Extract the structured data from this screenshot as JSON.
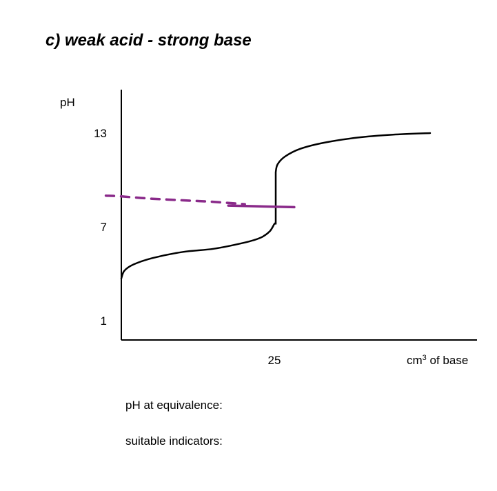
{
  "chart_data": {
    "type": "line",
    "title": "c) weak acid - strong base",
    "ylabel": "pH",
    "xlabel": "cm³ of base",
    "xlabel_parts": {
      "base": "cm",
      "sup": "3",
      "rest": " of base"
    },
    "ylim": [
      0,
      15
    ],
    "xlim": [
      0,
      50
    ],
    "yticks": [
      {
        "value": 13,
        "label": "13"
      },
      {
        "value": 7,
        "label": "7"
      },
      {
        "value": 1,
        "label": "1"
      }
    ],
    "xticks": [
      {
        "value": 25,
        "label": "25"
      }
    ],
    "grid": false,
    "series": [
      {
        "style": "solid",
        "color": "#000000",
        "x": [
          0,
          0.5,
          2,
          5,
          10,
          15,
          20,
          22.5,
          24,
          24.8,
          25,
          25,
          25.3,
          26.5,
          29,
          33,
          38,
          44,
          50
        ],
        "y": [
          3.7,
          4.2,
          4.6,
          5.0,
          5.4,
          5.6,
          6.0,
          6.3,
          6.7,
          7.2,
          7.2,
          10.5,
          11.0,
          11.5,
          12.0,
          12.4,
          12.7,
          12.9,
          13.0
        ]
      },
      {
        "style": "dashed",
        "color": "#8a2a8a",
        "x": [
          -2.5,
          0,
          5,
          10,
          15,
          20,
          25,
          28
        ],
        "y": [
          9.0,
          8.95,
          8.8,
          8.7,
          8.6,
          8.45,
          8.35,
          8.35
        ]
      }
    ]
  },
  "captions": {
    "equivalence": "pH at equivalence:",
    "indicators": "suitable indicators:"
  }
}
